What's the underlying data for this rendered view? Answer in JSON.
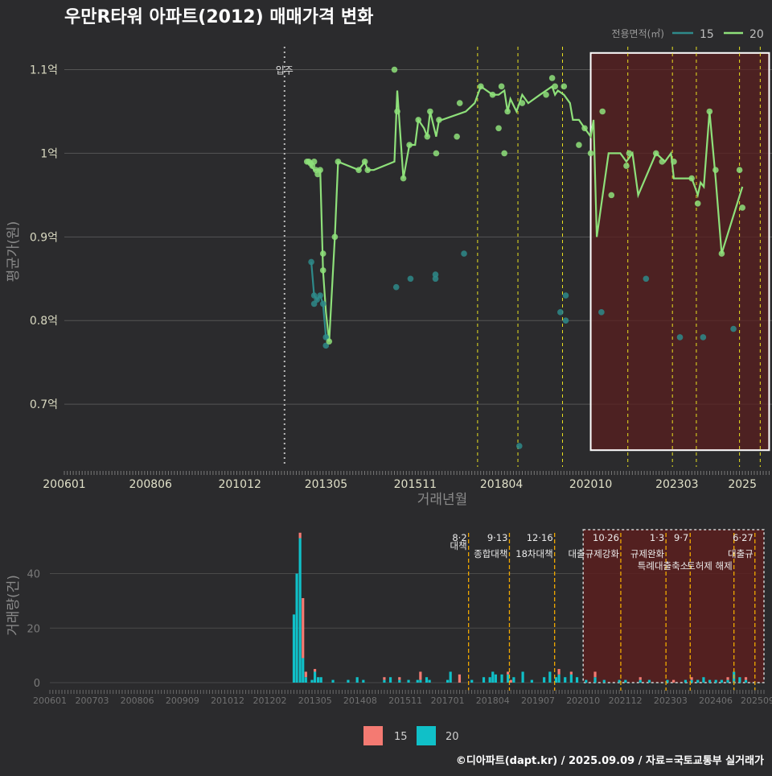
{
  "title": "우만R타워 아파트(2012) 매매가격 변화",
  "source": "©디아파트(dapt.kr) / 2025.09.09 / 자료=국토교통부 실거래가",
  "colors": {
    "bg": "#2b2b2d",
    "grid": "#555555",
    "s15_line": "#2e8a8a",
    "s20_line": "#8ee07a",
    "bar15": "#f47a72",
    "bar20": "#10c0c8",
    "vline_top": "#e8e020",
    "vline_bot": "#f0a800",
    "shade": "#5a1f1f"
  },
  "chart_data": [
    {
      "type": "line",
      "title": "우만R타워 아파트(2012) 매매가격 변화",
      "xlabel": "거래년월",
      "ylabel": "평균가(원)",
      "xticks": [
        "200601",
        "200806",
        "201012",
        "201305",
        "201511",
        "201804",
        "202010",
        "202303",
        "2025"
      ],
      "yticks": [
        {
          "v": 0.7,
          "label": "0.7억"
        },
        {
          "v": 0.8,
          "label": "0.8억"
        },
        {
          "v": 0.9,
          "label": "0.9억"
        },
        {
          "v": 1.0,
          "label": "1억"
        },
        {
          "v": 1.1,
          "label": "1.1억"
        }
      ],
      "ylim": [
        0.625,
        1.14
      ],
      "xlim": [
        2006.0,
        2025.83
      ],
      "legend": {
        "title": "전용면적(㎡)",
        "entries": [
          "15",
          "20"
        ],
        "placement": "top-right"
      },
      "occupancy": {
        "x": 2012.17,
        "label": "입주"
      },
      "policy_lines": [
        2017.58,
        2018.71,
        2019.96,
        2021.79,
        2023.04,
        2023.71,
        2024.92,
        2025.5
      ],
      "highlight": {
        "x0": 2020.75,
        "x1": 2025.75
      },
      "series": [
        {
          "name": "15",
          "line": [
            [
              2012.92,
              0.87
            ],
            [
              2013.0,
              0.83
            ],
            [
              2013.08,
              0.825
            ],
            [
              2013.17,
              0.83
            ],
            [
              2013.25,
              0.82
            ],
            [
              2013.33,
              0.78
            ],
            [
              2013.42,
              0.775
            ]
          ],
          "points": [
            [
              2012.92,
              0.87
            ],
            [
              2013.0,
              0.83
            ],
            [
              2013.0,
              0.82
            ],
            [
              2013.08,
              0.825
            ],
            [
              2013.17,
              0.83
            ],
            [
              2013.25,
              0.82
            ],
            [
              2013.33,
              0.78
            ],
            [
              2013.33,
              0.77
            ],
            [
              2015.3,
              0.84
            ],
            [
              2015.7,
              0.85
            ],
            [
              2016.4,
              0.855
            ],
            [
              2016.4,
              0.85
            ],
            [
              2017.2,
              0.88
            ],
            [
              2018.75,
              0.65
            ],
            [
              2019.9,
              0.81
            ],
            [
              2020.05,
              0.83
            ],
            [
              2020.05,
              0.8
            ],
            [
              2021.05,
              0.81
            ],
            [
              2022.3,
              0.85
            ],
            [
              2023.25,
              0.78
            ],
            [
              2023.9,
              0.78
            ],
            [
              2024.75,
              0.79
            ]
          ]
        },
        {
          "name": "20",
          "line": [
            [
              2012.83,
              0.99
            ],
            [
              2012.92,
              0.985
            ],
            [
              2013.0,
              0.98
            ],
            [
              2013.08,
              0.98
            ],
            [
              2013.17,
              0.98
            ],
            [
              2013.25,
              0.86
            ],
            [
              2013.33,
              0.81
            ],
            [
              2013.42,
              0.775
            ],
            [
              2013.58,
              0.9
            ],
            [
              2013.67,
              0.99
            ],
            [
              2014.25,
              0.98
            ],
            [
              2014.42,
              0.99
            ],
            [
              2014.5,
              0.98
            ],
            [
              2014.67,
              0.98
            ],
            [
              2015.25,
              0.99
            ],
            [
              2015.33,
              1.075
            ],
            [
              2015.5,
              0.97
            ],
            [
              2015.67,
              1.01
            ],
            [
              2015.83,
              1.01
            ],
            [
              2015.92,
              1.04
            ],
            [
              2016.08,
              1.03
            ],
            [
              2016.17,
              1.02
            ],
            [
              2016.25,
              1.05
            ],
            [
              2016.42,
              1.02
            ],
            [
              2016.5,
              1.04
            ],
            [
              2016.58,
              1.04
            ],
            [
              2017.25,
              1.05
            ],
            [
              2017.5,
              1.06
            ],
            [
              2017.67,
              1.08
            ],
            [
              2018.0,
              1.07
            ],
            [
              2018.17,
              1.07
            ],
            [
              2018.33,
              1.075
            ],
            [
              2018.42,
              1.05
            ],
            [
              2018.5,
              1.065
            ],
            [
              2018.67,
              1.05
            ],
            [
              2018.83,
              1.07
            ],
            [
              2019.0,
              1.06
            ],
            [
              2019.33,
              1.07
            ],
            [
              2019.67,
              1.08
            ],
            [
              2019.75,
              1.07
            ],
            [
              2019.83,
              1.075
            ],
            [
              2020.0,
              1.07
            ],
            [
              2020.17,
              1.06
            ],
            [
              2020.25,
              1.04
            ],
            [
              2020.42,
              1.04
            ],
            [
              2020.58,
              1.03
            ],
            [
              2020.75,
              1.02
            ],
            [
              2020.83,
              1.04
            ],
            [
              2020.92,
              0.9
            ],
            [
              2021.25,
              1.0
            ],
            [
              2021.58,
              1.0
            ],
            [
              2021.75,
              0.99
            ],
            [
              2021.92,
              1.0
            ],
            [
              2022.08,
              0.95
            ],
            [
              2022.58,
              1.0
            ],
            [
              2022.83,
              0.99
            ],
            [
              2023.0,
              1.0
            ],
            [
              2023.08,
              0.97
            ],
            [
              2023.58,
              0.97
            ],
            [
              2023.67,
              0.96
            ],
            [
              2023.75,
              0.95
            ],
            [
              2023.83,
              0.965
            ],
            [
              2023.92,
              0.96
            ],
            [
              2024.08,
              1.05
            ],
            [
              2024.25,
              0.97
            ],
            [
              2024.42,
              0.88
            ],
            [
              2025.0,
              0.96
            ]
          ],
          "points": [
            [
              2012.8,
              0.99
            ],
            [
              2012.85,
              0.99
            ],
            [
              2012.9,
              0.988
            ],
            [
              2012.95,
              0.985
            ],
            [
              2013.0,
              0.99
            ],
            [
              2013.05,
              0.98
            ],
            [
              2013.1,
              0.975
            ],
            [
              2013.17,
              0.98
            ],
            [
              2013.25,
              0.88
            ],
            [
              2013.25,
              0.86
            ],
            [
              2013.42,
              0.775
            ],
            [
              2013.58,
              0.9
            ],
            [
              2013.67,
              0.99
            ],
            [
              2014.25,
              0.98
            ],
            [
              2014.42,
              0.99
            ],
            [
              2014.5,
              0.98
            ],
            [
              2015.25,
              1.1
            ],
            [
              2015.33,
              1.05
            ],
            [
              2015.5,
              0.97
            ],
            [
              2015.67,
              1.01
            ],
            [
              2015.92,
              1.04
            ],
            [
              2016.17,
              1.02
            ],
            [
              2016.25,
              1.05
            ],
            [
              2016.42,
              1.0
            ],
            [
              2016.5,
              1.04
            ],
            [
              2017.0,
              1.02
            ],
            [
              2017.08,
              1.06
            ],
            [
              2017.67,
              1.08
            ],
            [
              2018.0,
              1.07
            ],
            [
              2018.17,
              1.03
            ],
            [
              2018.25,
              1.08
            ],
            [
              2018.33,
              1.0
            ],
            [
              2018.42,
              1.05
            ],
            [
              2018.83,
              1.06
            ],
            [
              2019.5,
              1.07
            ],
            [
              2019.67,
              1.09
            ],
            [
              2019.75,
              1.08
            ],
            [
              2020.0,
              1.08
            ],
            [
              2020.42,
              1.01
            ],
            [
              2020.58,
              1.03
            ],
            [
              2020.75,
              1.0
            ],
            [
              2021.08,
              1.05
            ],
            [
              2021.33,
              0.95
            ],
            [
              2021.75,
              0.985
            ],
            [
              2021.83,
              1.0
            ],
            [
              2022.58,
              1.0
            ],
            [
              2022.75,
              0.99
            ],
            [
              2023.08,
              0.99
            ],
            [
              2023.58,
              0.97
            ],
            [
              2023.75,
              0.94
            ],
            [
              2024.08,
              1.05
            ],
            [
              2024.25,
              0.98
            ],
            [
              2024.42,
              0.88
            ],
            [
              2024.92,
              0.98
            ],
            [
              2025.0,
              0.935
            ]
          ]
        }
      ]
    },
    {
      "type": "bar",
      "ylabel": "거래량(건)",
      "xticks": [
        "200601",
        "200703",
        "200806",
        "200909",
        "201012",
        "201202",
        "201305",
        "201408",
        "201511",
        "201701",
        "201804",
        "201907",
        "202010",
        "202112",
        "202303",
        "202406",
        "202509"
      ],
      "yticks": [
        0,
        20,
        40
      ],
      "ylim": [
        0,
        57
      ],
      "legend": [
        "15",
        "20"
      ],
      "policies": [
        {
          "x": 2017.58,
          "date": "8·2",
          "label": "대책"
        },
        {
          "x": 2018.71,
          "date": "9·13",
          "label": "종합대책"
        },
        {
          "x": 2019.96,
          "date": "12·16",
          "label": "18차대책"
        },
        {
          "x": 2021.79,
          "date": "10·26",
          "label": "대출규제강화"
        },
        {
          "x": 2023.04,
          "date": "1·3",
          "label": "규제완화"
        },
        {
          "x": 2023.71,
          "date": "9·7",
          "label": "특례대출축소"
        },
        {
          "x": 2024.92,
          "date": "",
          "label": "토허제 해제"
        },
        {
          "x": 2025.5,
          "date": "6·27",
          "label": "대출규"
        }
      ],
      "highlight": {
        "x0": 2020.75,
        "x1": 2025.75
      },
      "bars": [
        {
          "x": 2012.75,
          "s15": 0,
          "s20": 25
        },
        {
          "x": 2012.83,
          "s15": 0,
          "s20": 40
        },
        {
          "x": 2012.92,
          "s15": 2,
          "s20": 53
        },
        {
          "x": 2013.0,
          "s15": 22,
          "s20": 9
        },
        {
          "x": 2013.08,
          "s15": 2,
          "s20": 2
        },
        {
          "x": 2013.25,
          "s15": 0,
          "s20": 1
        },
        {
          "x": 2013.33,
          "s15": 1,
          "s20": 4
        },
        {
          "x": 2013.42,
          "s15": 0,
          "s20": 2
        },
        {
          "x": 2013.5,
          "s15": 0,
          "s20": 2
        },
        {
          "x": 2013.83,
          "s15": 0,
          "s20": 1
        },
        {
          "x": 2014.25,
          "s15": 0,
          "s20": 1
        },
        {
          "x": 2014.5,
          "s15": 0,
          "s20": 2
        },
        {
          "x": 2014.67,
          "s15": 0,
          "s20": 1
        },
        {
          "x": 2015.25,
          "s15": 1,
          "s20": 1
        },
        {
          "x": 2015.42,
          "s15": 0,
          "s20": 2
        },
        {
          "x": 2015.67,
          "s15": 1,
          "s20": 1
        },
        {
          "x": 2015.92,
          "s15": 0,
          "s20": 1
        },
        {
          "x": 2016.17,
          "s15": 0,
          "s20": 1
        },
        {
          "x": 2016.25,
          "s15": 3,
          "s20": 1
        },
        {
          "x": 2016.42,
          "s15": 0,
          "s20": 2
        },
        {
          "x": 2016.5,
          "s15": 0,
          "s20": 1
        },
        {
          "x": 2017.0,
          "s15": 0,
          "s20": 1
        },
        {
          "x": 2017.08,
          "s15": 0,
          "s20": 4
        },
        {
          "x": 2017.33,
          "s15": 3,
          "s20": 0
        },
        {
          "x": 2017.67,
          "s15": 0,
          "s20": 1
        },
        {
          "x": 2018.0,
          "s15": 0,
          "s20": 2
        },
        {
          "x": 2018.17,
          "s15": 0,
          "s20": 2
        },
        {
          "x": 2018.25,
          "s15": 0,
          "s20": 4
        },
        {
          "x": 2018.33,
          "s15": 0,
          "s20": 3
        },
        {
          "x": 2018.5,
          "s15": 0,
          "s20": 3
        },
        {
          "x": 2018.67,
          "s15": 1,
          "s20": 3
        },
        {
          "x": 2018.75,
          "s15": 1,
          "s20": 0
        },
        {
          "x": 2018.83,
          "s15": 0,
          "s20": 2
        },
        {
          "x": 2019.08,
          "s15": 0,
          "s20": 4
        },
        {
          "x": 2019.33,
          "s15": 0,
          "s20": 1
        },
        {
          "x": 2019.67,
          "s15": 0,
          "s20": 2
        },
        {
          "x": 2019.83,
          "s15": 0,
          "s20": 4
        },
        {
          "x": 2020.0,
          "s15": 0,
          "s20": 2
        },
        {
          "x": 2020.08,
          "s15": 2,
          "s20": 3
        },
        {
          "x": 2020.25,
          "s15": 0,
          "s20": 2
        },
        {
          "x": 2020.42,
          "s15": 1,
          "s20": 3
        },
        {
          "x": 2020.58,
          "s15": 0,
          "s20": 2
        },
        {
          "x": 2020.83,
          "s15": 0,
          "s20": 1
        },
        {
          "x": 2021.08,
          "s15": 2,
          "s20": 2
        },
        {
          "x": 2021.33,
          "s15": 0,
          "s20": 1
        },
        {
          "x": 2021.75,
          "s15": 0,
          "s20": 1
        },
        {
          "x": 2021.92,
          "s15": 0,
          "s20": 1
        },
        {
          "x": 2022.33,
          "s15": 1,
          "s20": 1
        },
        {
          "x": 2022.58,
          "s15": 0,
          "s20": 1
        },
        {
          "x": 2023.08,
          "s15": 0,
          "s20": 1
        },
        {
          "x": 2023.25,
          "s15": 1,
          "s20": 0
        },
        {
          "x": 2023.58,
          "s15": 0,
          "s20": 1
        },
        {
          "x": 2023.75,
          "s15": 1,
          "s20": 1
        },
        {
          "x": 2023.92,
          "s15": 0,
          "s20": 1
        },
        {
          "x": 2024.08,
          "s15": 0,
          "s20": 2
        },
        {
          "x": 2024.25,
          "s15": 0,
          "s20": 1
        },
        {
          "x": 2024.42,
          "s15": 0,
          "s20": 1
        },
        {
          "x": 2024.58,
          "s15": 0,
          "s20": 1
        },
        {
          "x": 2024.75,
          "s15": 1,
          "s20": 1
        },
        {
          "x": 2024.92,
          "s15": 0,
          "s20": 4
        },
        {
          "x": 2025.08,
          "s15": 0,
          "s20": 2
        },
        {
          "x": 2025.25,
          "s15": 1,
          "s20": 1
        }
      ]
    }
  ]
}
